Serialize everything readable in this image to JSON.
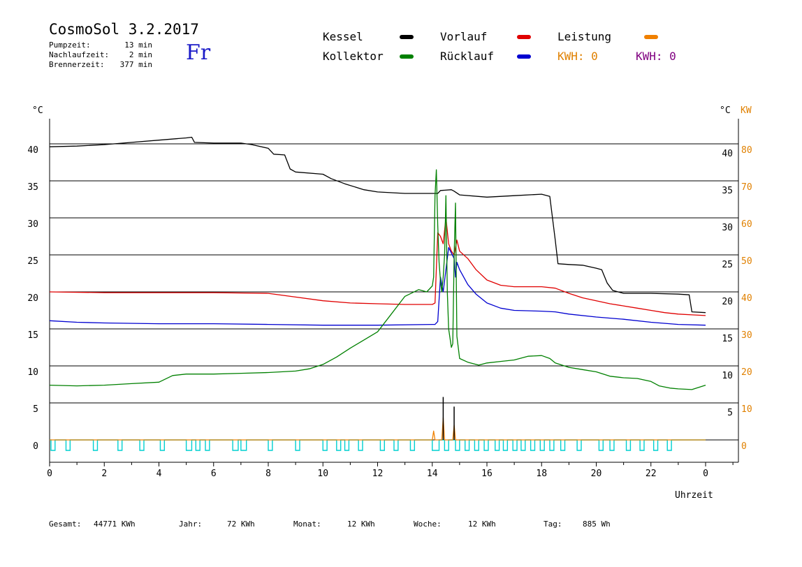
{
  "header": {
    "title": "CosmoSol 3.2.2017",
    "day": "Fr",
    "stats": [
      {
        "label": "Pumpzeit:",
        "value": "13 min"
      },
      {
        "label": "Nachlaufzeit:",
        "value": "2 min"
      },
      {
        "label": "Brennerzeit:",
        "value": "377 min"
      }
    ]
  },
  "legend": {
    "kessel": {
      "label": "Kessel",
      "color": "#000000"
    },
    "vorlauf": {
      "label": "Vorlauf",
      "color": "#e00000"
    },
    "leistung": {
      "label": "Leistung",
      "color": "#f08000"
    },
    "kollektor": {
      "label": "Kollektor",
      "color": "#008000"
    },
    "ruecklauf": {
      "label": "Rücklauf",
      "color": "#0000d0"
    },
    "kwh1": {
      "label": "KWH: 0",
      "color": "#e08000"
    },
    "kwh2": {
      "label": "KWH: 0",
      "color": "#800080"
    }
  },
  "footer": {
    "gesamt": {
      "label": "Gesamt:",
      "value": "44771 KWh"
    },
    "jahr": {
      "label": "Jahr:",
      "value": "72 KWh"
    },
    "monat": {
      "label": "Monat:",
      "value": "12 KWh"
    },
    "woche": {
      "label": "Woche:",
      "value": "12 KWh"
    },
    "tag": {
      "label": "Tag:",
      "value": "885 Wh"
    }
  },
  "chart_data": {
    "type": "line",
    "xlabel": "Uhrzeit",
    "ylabel": "°C",
    "ylabel_right_1": "°C",
    "ylabel_right_2": "KW",
    "xlim": [
      0,
      24
    ],
    "ylim": [
      0,
      45
    ],
    "ylim_right_kw": [
      0,
      90
    ],
    "x_ticks": [
      "0",
      "2",
      "4",
      "6",
      "8",
      "10",
      "12",
      "14",
      "16",
      "18",
      "20",
      "22",
      "0"
    ],
    "y_ticks_left": [
      "0",
      "5",
      "10",
      "15",
      "20",
      "25",
      "30",
      "35",
      "40"
    ],
    "y_ticks_right": [
      "5",
      "10",
      "15",
      "20",
      "25",
      "30",
      "35",
      "40"
    ],
    "y_ticks_kw": [
      "0",
      "10",
      "20",
      "30",
      "40",
      "50",
      "60",
      "70",
      "80"
    ],
    "grid": "horizontal",
    "series": [
      {
        "name": "Kessel",
        "color": "#000000",
        "points": [
          [
            0,
            39.6
          ],
          [
            1,
            39.7
          ],
          [
            2,
            39.9
          ],
          [
            3,
            40.2
          ],
          [
            4,
            40.5
          ],
          [
            5,
            40.8
          ],
          [
            5.2,
            40.9
          ],
          [
            5.3,
            40.2
          ],
          [
            6,
            40.1
          ],
          [
            7,
            40.1
          ],
          [
            7.4,
            39.9
          ],
          [
            8,
            39.4
          ],
          [
            8.2,
            38.6
          ],
          [
            8.6,
            38.5
          ],
          [
            8.8,
            36.6
          ],
          [
            9,
            36.2
          ],
          [
            10,
            35.9
          ],
          [
            10.3,
            35.3
          ],
          [
            10.8,
            34.6
          ],
          [
            11.5,
            33.8
          ],
          [
            12,
            33.5
          ],
          [
            13,
            33.3
          ],
          [
            14.2,
            33.3
          ],
          [
            14.3,
            33.7
          ],
          [
            14.7,
            33.8
          ],
          [
            14.8,
            33.6
          ],
          [
            15,
            33.1
          ],
          [
            16,
            32.8
          ],
          [
            17,
            33.0
          ],
          [
            18,
            33.2
          ],
          [
            18.3,
            32.9
          ],
          [
            18.5,
            27
          ],
          [
            18.6,
            23.8
          ],
          [
            19,
            23.7
          ],
          [
            19.5,
            23.6
          ],
          [
            20,
            23.2
          ],
          [
            20.2,
            23.0
          ],
          [
            20.4,
            21.2
          ],
          [
            20.6,
            20.2
          ],
          [
            21,
            19.8
          ],
          [
            22,
            19.8
          ],
          [
            23,
            19.7
          ],
          [
            23.4,
            19.6
          ],
          [
            23.5,
            17.3
          ],
          [
            24,
            17.2
          ]
        ]
      },
      {
        "name": "Vorlauf",
        "color": "#e00000",
        "points": [
          [
            0,
            20.0
          ],
          [
            2,
            19.9
          ],
          [
            4,
            19.9
          ],
          [
            6,
            19.9
          ],
          [
            8,
            19.8
          ],
          [
            9,
            19.3
          ],
          [
            10,
            18.8
          ],
          [
            11,
            18.5
          ],
          [
            12,
            18.4
          ],
          [
            13,
            18.3
          ],
          [
            14,
            18.3
          ],
          [
            14.1,
            18.5
          ],
          [
            14.2,
            28
          ],
          [
            14.3,
            27.5
          ],
          [
            14.4,
            26.5
          ],
          [
            14.5,
            30
          ],
          [
            14.6,
            26.5
          ],
          [
            14.7,
            25.5
          ],
          [
            14.8,
            25
          ],
          [
            14.9,
            27
          ],
          [
            15,
            25.5
          ],
          [
            15.3,
            24.5
          ],
          [
            15.6,
            23
          ],
          [
            16,
            21.6
          ],
          [
            16.5,
            20.9
          ],
          [
            17,
            20.7
          ],
          [
            17.5,
            20.7
          ],
          [
            18,
            20.7
          ],
          [
            18.5,
            20.5
          ],
          [
            19,
            19.8
          ],
          [
            19.5,
            19.2
          ],
          [
            20,
            18.8
          ],
          [
            20.5,
            18.4
          ],
          [
            21,
            18.1
          ],
          [
            21.5,
            17.8
          ],
          [
            22,
            17.5
          ],
          [
            22.5,
            17.2
          ],
          [
            23,
            17.0
          ],
          [
            23.5,
            16.9
          ],
          [
            24,
            16.8
          ]
        ]
      },
      {
        "name": "Rücklauf",
        "color": "#0000d0",
        "points": [
          [
            0,
            16.1
          ],
          [
            1,
            15.9
          ],
          [
            2,
            15.8
          ],
          [
            4,
            15.7
          ],
          [
            6,
            15.7
          ],
          [
            8,
            15.6
          ],
          [
            10,
            15.5
          ],
          [
            12,
            15.5
          ],
          [
            14,
            15.6
          ],
          [
            14.1,
            15.6
          ],
          [
            14.2,
            16
          ],
          [
            14.3,
            22
          ],
          [
            14.4,
            20
          ],
          [
            14.5,
            23
          ],
          [
            14.6,
            26
          ],
          [
            14.8,
            24.5
          ],
          [
            14.85,
            22
          ],
          [
            14.9,
            24
          ],
          [
            15,
            23
          ],
          [
            15.3,
            21
          ],
          [
            15.6,
            19.7
          ],
          [
            16,
            18.5
          ],
          [
            16.5,
            17.8
          ],
          [
            17,
            17.5
          ],
          [
            18,
            17.4
          ],
          [
            18.5,
            17.3
          ],
          [
            19,
            17.0
          ],
          [
            20,
            16.6
          ],
          [
            21,
            16.3
          ],
          [
            22,
            15.9
          ],
          [
            23,
            15.6
          ],
          [
            24,
            15.5
          ]
        ]
      },
      {
        "name": "Kollektor",
        "color": "#008000",
        "points": [
          [
            0,
            7.4
          ],
          [
            1,
            7.3
          ],
          [
            2,
            7.4
          ],
          [
            3,
            7.6
          ],
          [
            4,
            7.8
          ],
          [
            4.5,
            8.7
          ],
          [
            5,
            8.9
          ],
          [
            6,
            8.9
          ],
          [
            7,
            9.0
          ],
          [
            8,
            9.1
          ],
          [
            9,
            9.3
          ],
          [
            9.5,
            9.6
          ],
          [
            10,
            10.2
          ],
          [
            10.5,
            11.2
          ],
          [
            11,
            12.4
          ],
          [
            11.5,
            13.5
          ],
          [
            12,
            14.6
          ],
          [
            12.5,
            17.0
          ],
          [
            13,
            19.4
          ],
          [
            13.5,
            20.3
          ],
          [
            13.8,
            20.0
          ],
          [
            14,
            20.8
          ],
          [
            14.05,
            22
          ],
          [
            14.1,
            33
          ],
          [
            14.15,
            36.5
          ],
          [
            14.2,
            29
          ],
          [
            14.25,
            24
          ],
          [
            14.3,
            21.5
          ],
          [
            14.35,
            20
          ],
          [
            14.4,
            22
          ],
          [
            14.45,
            25
          ],
          [
            14.5,
            33
          ],
          [
            14.55,
            20
          ],
          [
            14.6,
            15
          ],
          [
            14.7,
            12.5
          ],
          [
            14.75,
            13
          ],
          [
            14.8,
            25
          ],
          [
            14.85,
            32
          ],
          [
            14.9,
            14
          ],
          [
            15,
            11
          ],
          [
            15.3,
            10.5
          ],
          [
            15.7,
            10.1
          ],
          [
            16,
            10.4
          ],
          [
            16.5,
            10.6
          ],
          [
            17,
            10.8
          ],
          [
            17.5,
            11.3
          ],
          [
            18,
            11.4
          ],
          [
            18.3,
            11.0
          ],
          [
            18.5,
            10.4
          ],
          [
            19,
            9.8
          ],
          [
            19.5,
            9.5
          ],
          [
            20,
            9.2
          ],
          [
            20.5,
            8.6
          ],
          [
            21,
            8.4
          ],
          [
            21.5,
            8.3
          ],
          [
            22,
            7.9
          ],
          [
            22.3,
            7.3
          ],
          [
            22.7,
            7.0
          ],
          [
            23,
            6.9
          ],
          [
            23.5,
            6.8
          ],
          [
            24,
            7.4
          ]
        ]
      },
      {
        "name": "Leistung",
        "color": "#f08000",
        "points": [
          [
            0,
            0
          ],
          [
            14.0,
            0
          ],
          [
            14.05,
            1.2
          ],
          [
            14.1,
            0
          ],
          [
            14.35,
            0
          ],
          [
            14.4,
            3
          ],
          [
            14.45,
            0
          ],
          [
            14.75,
            0
          ],
          [
            14.8,
            2
          ],
          [
            14.85,
            0
          ],
          [
            24,
            0
          ]
        ]
      }
    ],
    "spikes_black": [
      [
        14.4,
        5.8
      ],
      [
        14.8,
        4.5
      ]
    ],
    "pump_pulses_cyan": [
      [
        0.05,
        0.2
      ],
      [
        0.6,
        0.75
      ],
      [
        1.6,
        1.75
      ],
      [
        2.5,
        2.65
      ],
      [
        3.3,
        3.45
      ],
      [
        4.05,
        4.2
      ],
      [
        5.0,
        5.2
      ],
      [
        5.35,
        5.5
      ],
      [
        5.7,
        5.85
      ],
      [
        6.7,
        6.9
      ],
      [
        7.0,
        7.2
      ],
      [
        8.0,
        8.15
      ],
      [
        9.0,
        9.15
      ],
      [
        10.0,
        10.15
      ],
      [
        10.5,
        10.65
      ],
      [
        10.8,
        10.95
      ],
      [
        11.3,
        11.45
      ],
      [
        12.1,
        12.25
      ],
      [
        12.6,
        12.75
      ],
      [
        13.2,
        13.35
      ],
      [
        14.0,
        14.25
      ],
      [
        14.45,
        14.6
      ],
      [
        14.85,
        15.0
      ],
      [
        15.2,
        15.35
      ],
      [
        15.55,
        15.7
      ],
      [
        15.9,
        16.05
      ],
      [
        16.3,
        16.45
      ],
      [
        16.6,
        16.75
      ],
      [
        16.95,
        17.1
      ],
      [
        17.25,
        17.4
      ],
      [
        17.6,
        17.75
      ],
      [
        17.95,
        18.1
      ],
      [
        18.3,
        18.45
      ],
      [
        18.7,
        18.85
      ],
      [
        19.3,
        19.45
      ],
      [
        20.1,
        20.25
      ],
      [
        20.5,
        20.65
      ],
      [
        21.1,
        21.25
      ],
      [
        21.6,
        21.75
      ],
      [
        22.1,
        22.25
      ],
      [
        22.6,
        22.75
      ]
    ]
  }
}
